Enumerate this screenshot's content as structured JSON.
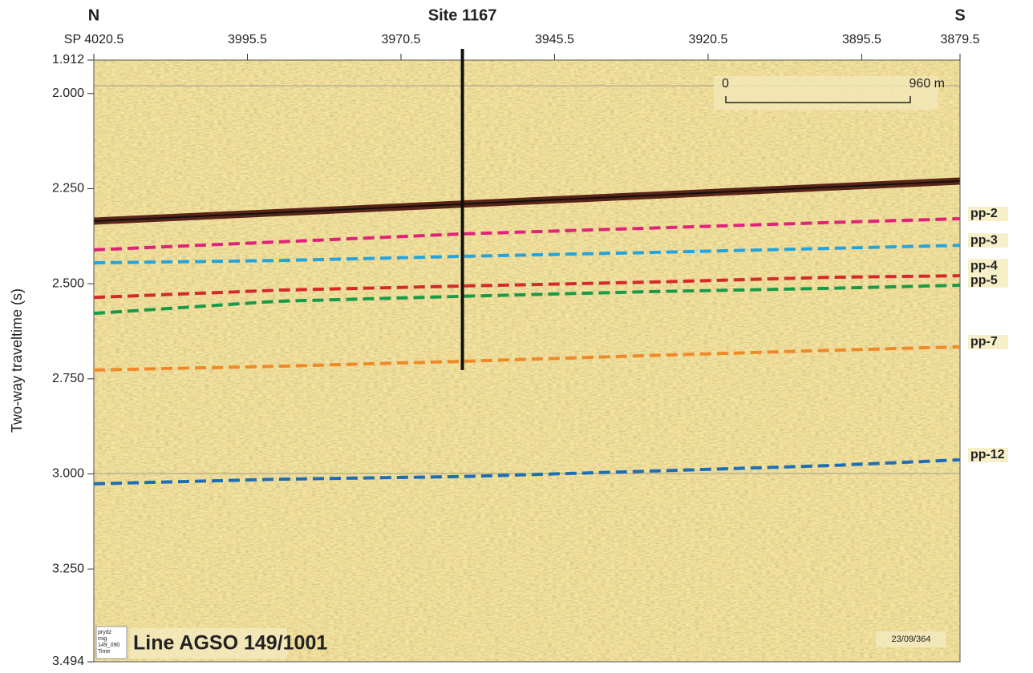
{
  "chart_data": {
    "type": "line",
    "title": "Site 1167",
    "site_x": 3960.5,
    "site_y_end": 2.727,
    "left_label": "N",
    "right_label": "S",
    "ylabel": "Two-way traveltime (s)",
    "xlim": [
      4020.5,
      3879.5
    ],
    "xticks": [
      {
        "value": 4020.5,
        "label": "SP 4020.5"
      },
      3995.5,
      3970.5,
      3945.5,
      3920.5,
      3895.5,
      3879.5
    ],
    "ylim": [
      1.912,
      3.494
    ],
    "y_inverted": true,
    "yticks": [
      1.912,
      {
        "value": 2.0,
        "label": "2.000"
      },
      {
        "value": 2.25,
        "label": "2.250"
      },
      {
        "value": 2.5,
        "label": "2.500"
      },
      {
        "value": 2.75,
        "label": "2.750"
      },
      {
        "value": 3.0,
        "label": "3.000"
      },
      {
        "value": 3.25,
        "label": "3.250"
      },
      3.494
    ],
    "x": [
      4020.5,
      3990.5,
      3960.5,
      3930.5,
      3900.5,
      3879.5
    ],
    "series": [
      {
        "name": "pp-2",
        "color": "#e0237a",
        "values": [
          2.411,
          2.39,
          2.369,
          2.354,
          2.339,
          2.329
        ]
      },
      {
        "name": "pp-3",
        "color": "#27a3dc",
        "values": [
          2.445,
          2.439,
          2.428,
          2.418,
          2.407,
          2.399
        ]
      },
      {
        "name": "pp-4",
        "color": "#d42a2a",
        "values": [
          2.536,
          2.517,
          2.506,
          2.496,
          2.483,
          2.479
        ]
      },
      {
        "name": "pp-5",
        "color": "#1a9a48",
        "values": [
          2.578,
          2.546,
          2.533,
          2.521,
          2.512,
          2.504
        ]
      },
      {
        "name": "pp-7",
        "color": "#ef8a2a",
        "values": [
          2.727,
          2.717,
          2.704,
          2.689,
          2.675,
          2.666
        ]
      },
      {
        "name": "pp-12",
        "color": "#1f6eb5",
        "values": [
          3.026,
          3.014,
          3.007,
          2.993,
          2.978,
          2.963
        ]
      }
    ],
    "line_label": "Line AGSO 149/1001",
    "stamp": [
      "prydz",
      "mig",
      "149_090",
      "Time"
    ],
    "scale_bar": {
      "start_label": "0",
      "end_label": "960 m"
    },
    "record_label": "23/09/364"
  }
}
